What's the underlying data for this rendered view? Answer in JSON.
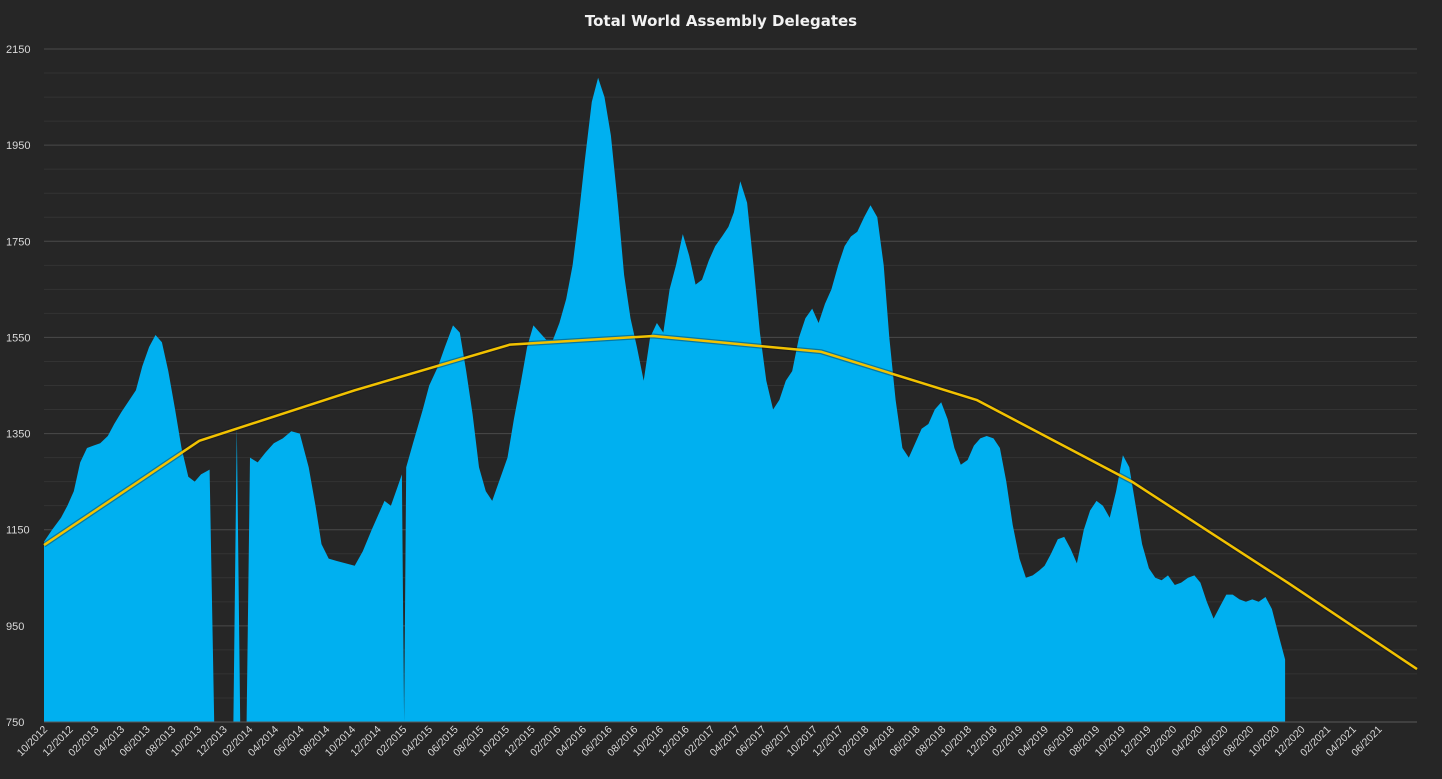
{
  "chart_data": {
    "type": "area",
    "title": "Total World Assembly Delegates",
    "xlabel": "",
    "ylabel": "",
    "x_range": [
      "2012-10-01",
      "2021-08-01"
    ],
    "ylim": [
      750,
      2150
    ],
    "y_ticks": [
      750,
      950,
      1150,
      1350,
      1550,
      1750,
      1950,
      2150
    ],
    "x_tick_labels": [
      "10/2012",
      "12/2012",
      "02/2013",
      "04/2013",
      "06/2013",
      "08/2013",
      "10/2013",
      "12/2013",
      "02/2014",
      "04/2014",
      "06/2014",
      "08/2014",
      "10/2014",
      "12/2014",
      "02/2015",
      "04/2015",
      "06/2015",
      "08/2015",
      "10/2015",
      "12/2015",
      "02/2016",
      "04/2016",
      "06/2016",
      "08/2016",
      "10/2016",
      "12/2016",
      "02/2017",
      "04/2017",
      "06/2017",
      "08/2017",
      "10/2017",
      "12/2017",
      "02/2018",
      "04/2018",
      "06/2018",
      "08/2018",
      "10/2018",
      "12/2018",
      "02/2019",
      "04/2019",
      "06/2019",
      "08/2019",
      "10/2019",
      "12/2019",
      "02/2020",
      "04/2020",
      "06/2020",
      "08/2020",
      "10/2020",
      "12/2020",
      "02/2021",
      "04/2021",
      "06/2021"
    ],
    "grid": true,
    "legend": "none",
    "colors": {
      "area": "#00b0f0",
      "trend": "#f2c200",
      "grid": "#3f3f3f",
      "background": "#262626",
      "text": "#d9d9d9"
    },
    "series": [
      {
        "type": "area",
        "points": [
          [
            "2012-10-01",
            1125
          ],
          [
            "2012-10-20",
            1150
          ],
          [
            "2012-11-10",
            1175
          ],
          [
            "2012-11-25",
            1200
          ],
          [
            "2012-12-10",
            1230
          ],
          [
            "2012-12-25",
            1290
          ],
          [
            "2013-01-10",
            1320
          ],
          [
            "2013-01-25",
            1325
          ],
          [
            "2013-02-10",
            1330
          ],
          [
            "2013-02-28",
            1345
          ],
          [
            "2013-03-15",
            1370
          ],
          [
            "2013-04-01",
            1395
          ],
          [
            "2013-04-20",
            1420
          ],
          [
            "2013-05-05",
            1440
          ],
          [
            "2013-05-20",
            1490
          ],
          [
            "2013-06-05",
            1530
          ],
          [
            "2013-06-20",
            1555
          ],
          [
            "2013-07-05",
            1540
          ],
          [
            "2013-07-20",
            1480
          ],
          [
            "2013-08-05",
            1400
          ],
          [
            "2013-08-20",
            1320
          ],
          [
            "2013-09-05",
            1260
          ],
          [
            "2013-09-20",
            1250
          ],
          [
            "2013-10-05",
            1265
          ],
          [
            "2013-10-25",
            1275
          ],
          [
            "2013-11-05",
            750
          ],
          [
            "2013-12-20",
            750
          ],
          [
            "2013-12-28",
            1365
          ],
          [
            "2014-01-05",
            750
          ],
          [
            "2014-01-20",
            750
          ],
          [
            "2014-01-28",
            1300
          ],
          [
            "2014-02-15",
            1290
          ],
          [
            "2014-03-05",
            1310
          ],
          [
            "2014-03-25",
            1330
          ],
          [
            "2014-04-15",
            1340
          ],
          [
            "2014-05-05",
            1355
          ],
          [
            "2014-05-25",
            1350
          ],
          [
            "2014-06-15",
            1280
          ],
          [
            "2014-07-01",
            1200
          ],
          [
            "2014-07-15",
            1120
          ],
          [
            "2014-08-01",
            1090
          ],
          [
            "2014-08-20",
            1085
          ],
          [
            "2014-09-10",
            1080
          ],
          [
            "2014-10-01",
            1075
          ],
          [
            "2014-10-20",
            1105
          ],
          [
            "2014-11-10",
            1150
          ],
          [
            "2014-11-25",
            1180
          ],
          [
            "2014-12-10",
            1210
          ],
          [
            "2014-12-25",
            1200
          ],
          [
            "2015-01-10",
            1240
          ],
          [
            "2015-01-20",
            1265
          ],
          [
            "2015-01-25",
            750
          ],
          [
            "2015-01-30",
            1280
          ],
          [
            "2015-02-15",
            1330
          ],
          [
            "2015-03-10",
            1400
          ],
          [
            "2015-03-25",
            1450
          ],
          [
            "2015-04-15",
            1490
          ],
          [
            "2015-05-01",
            1530
          ],
          [
            "2015-05-20",
            1575
          ],
          [
            "2015-06-05",
            1560
          ],
          [
            "2015-06-20",
            1480
          ],
          [
            "2015-07-05",
            1390
          ],
          [
            "2015-07-20",
            1280
          ],
          [
            "2015-08-05",
            1230
          ],
          [
            "2015-08-20",
            1210
          ],
          [
            "2015-09-05",
            1250
          ],
          [
            "2015-09-25",
            1300
          ],
          [
            "2015-10-10",
            1380
          ],
          [
            "2015-10-25",
            1450
          ],
          [
            "2015-11-10",
            1530
          ],
          [
            "2015-11-25",
            1575
          ],
          [
            "2015-12-10",
            1560
          ],
          [
            "2015-12-25",
            1545
          ],
          [
            "2016-01-10",
            1545
          ],
          [
            "2016-01-25",
            1580
          ],
          [
            "2016-02-10",
            1630
          ],
          [
            "2016-02-25",
            1700
          ],
          [
            "2016-03-10",
            1800
          ],
          [
            "2016-03-25",
            1920
          ],
          [
            "2016-04-10",
            2040
          ],
          [
            "2016-04-25",
            2090
          ],
          [
            "2016-05-10",
            2050
          ],
          [
            "2016-05-25",
            1970
          ],
          [
            "2016-06-10",
            1830
          ],
          [
            "2016-06-25",
            1680
          ],
          [
            "2016-07-10",
            1590
          ],
          [
            "2016-07-25",
            1530
          ],
          [
            "2016-08-10",
            1460
          ],
          [
            "2016-08-25",
            1550
          ],
          [
            "2016-09-10",
            1580
          ],
          [
            "2016-09-25",
            1560
          ],
          [
            "2016-10-10",
            1650
          ],
          [
            "2016-10-25",
            1700
          ],
          [
            "2016-11-10",
            1765
          ],
          [
            "2016-11-25",
            1720
          ],
          [
            "2016-12-10",
            1660
          ],
          [
            "2016-12-25",
            1670
          ],
          [
            "2017-01-10",
            1710
          ],
          [
            "2017-01-25",
            1740
          ],
          [
            "2017-02-10",
            1760
          ],
          [
            "2017-02-25",
            1780
          ],
          [
            "2017-03-10",
            1810
          ],
          [
            "2017-03-25",
            1875
          ],
          [
            "2017-04-10",
            1830
          ],
          [
            "2017-04-25",
            1700
          ],
          [
            "2017-05-10",
            1560
          ],
          [
            "2017-05-25",
            1460
          ],
          [
            "2017-06-10",
            1400
          ],
          [
            "2017-06-25",
            1420
          ],
          [
            "2017-07-10",
            1460
          ],
          [
            "2017-07-25",
            1480
          ],
          [
            "2017-08-10",
            1550
          ],
          [
            "2017-08-25",
            1590
          ],
          [
            "2017-09-10",
            1610
          ],
          [
            "2017-09-25",
            1580
          ],
          [
            "2017-10-10",
            1620
          ],
          [
            "2017-10-25",
            1650
          ],
          [
            "2017-11-10",
            1700
          ],
          [
            "2017-11-25",
            1740
          ],
          [
            "2017-12-10",
            1760
          ],
          [
            "2017-12-25",
            1770
          ],
          [
            "2018-01-10",
            1800
          ],
          [
            "2018-01-25",
            1825
          ],
          [
            "2018-02-10",
            1800
          ],
          [
            "2018-02-25",
            1700
          ],
          [
            "2018-03-10",
            1550
          ],
          [
            "2018-03-25",
            1420
          ],
          [
            "2018-04-10",
            1320
          ],
          [
            "2018-04-25",
            1300
          ],
          [
            "2018-05-10",
            1330
          ],
          [
            "2018-05-25",
            1360
          ],
          [
            "2018-06-10",
            1370
          ],
          [
            "2018-06-25",
            1400
          ],
          [
            "2018-07-10",
            1415
          ],
          [
            "2018-07-25",
            1380
          ],
          [
            "2018-08-10",
            1320
          ],
          [
            "2018-08-25",
            1285
          ],
          [
            "2018-09-10",
            1295
          ],
          [
            "2018-09-25",
            1325
          ],
          [
            "2018-10-10",
            1340
          ],
          [
            "2018-10-25",
            1345
          ],
          [
            "2018-11-10",
            1340
          ],
          [
            "2018-11-25",
            1320
          ],
          [
            "2018-12-10",
            1250
          ],
          [
            "2018-12-25",
            1160
          ],
          [
            "2019-01-10",
            1090
          ],
          [
            "2019-01-25",
            1050
          ],
          [
            "2019-02-10",
            1055
          ],
          [
            "2019-02-25",
            1065
          ],
          [
            "2019-03-10",
            1075
          ],
          [
            "2019-03-25",
            1100
          ],
          [
            "2019-04-10",
            1130
          ],
          [
            "2019-04-25",
            1135
          ],
          [
            "2019-05-10",
            1110
          ],
          [
            "2019-05-25",
            1080
          ],
          [
            "2019-06-10",
            1150
          ],
          [
            "2019-06-25",
            1190
          ],
          [
            "2019-07-10",
            1210
          ],
          [
            "2019-07-25",
            1200
          ],
          [
            "2019-08-10",
            1175
          ],
          [
            "2019-08-25",
            1230
          ],
          [
            "2019-09-10",
            1305
          ],
          [
            "2019-09-25",
            1280
          ],
          [
            "2019-10-10",
            1200
          ],
          [
            "2019-10-25",
            1120
          ],
          [
            "2019-11-10",
            1070
          ],
          [
            "2019-11-25",
            1050
          ],
          [
            "2019-12-10",
            1045
          ],
          [
            "2019-12-25",
            1055
          ],
          [
            "2020-01-10",
            1035
          ],
          [
            "2020-01-25",
            1040
          ],
          [
            "2020-02-10",
            1050
          ],
          [
            "2020-02-25",
            1055
          ],
          [
            "2020-03-10",
            1040
          ],
          [
            "2020-03-25",
            1000
          ],
          [
            "2020-04-10",
            965
          ],
          [
            "2020-04-25",
            990
          ],
          [
            "2020-05-10",
            1015
          ],
          [
            "2020-05-25",
            1015
          ],
          [
            "2020-06-10",
            1005
          ],
          [
            "2020-06-25",
            1000
          ],
          [
            "2020-07-10",
            1005
          ],
          [
            "2020-07-25",
            1000
          ],
          [
            "2020-08-10",
            1010
          ],
          [
            "2020-08-25",
            985
          ],
          [
            "2020-09-10",
            930
          ],
          [
            "2020-09-25",
            880
          ]
        ]
      },
      {
        "type": "trend",
        "points": [
          [
            "2012-10-01",
            1118
          ],
          [
            "2013-10-01",
            1335
          ],
          [
            "2014-10-01",
            1440
          ],
          [
            "2015-10-01",
            1535
          ],
          [
            "2016-09-01",
            1553
          ],
          [
            "2017-10-01",
            1520
          ],
          [
            "2018-10-01",
            1420
          ],
          [
            "2019-10-01",
            1250
          ],
          [
            "2020-10-01",
            1040
          ],
          [
            "2021-08-01",
            860
          ]
        ]
      }
    ]
  }
}
